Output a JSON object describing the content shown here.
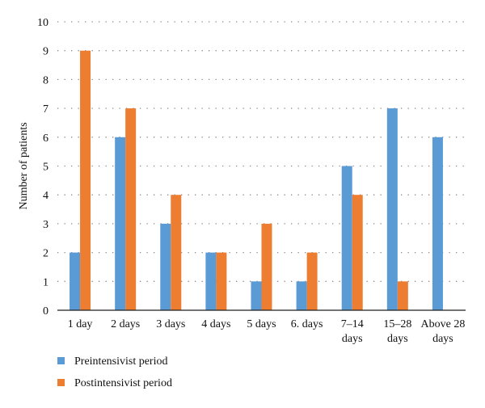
{
  "chart_data": {
    "type": "bar",
    "title": "",
    "xlabel": "",
    "ylabel": "Number of patients",
    "ylim": [
      0,
      10
    ],
    "yticks": [
      0,
      1,
      2,
      3,
      4,
      5,
      6,
      7,
      8,
      9,
      10
    ],
    "grid": "horizontal-dotted",
    "legend_position": "bottom-left",
    "categories": [
      [
        "1 day"
      ],
      [
        "2 days"
      ],
      [
        "3 days"
      ],
      [
        "4 days"
      ],
      [
        "5 days"
      ],
      [
        "6. days"
      ],
      [
        "7–14",
        "days"
      ],
      [
        "15–28",
        "days"
      ],
      [
        "Above 28",
        "days"
      ]
    ],
    "series": [
      {
        "name": "Preintensivist period",
        "color": "#5b9bd5",
        "values": [
          2,
          6,
          3,
          2,
          1,
          1,
          5,
          7,
          6
        ]
      },
      {
        "name": "Postintensivist period",
        "color": "#ed7d31",
        "values": [
          9,
          7,
          4,
          2,
          3,
          2,
          4,
          1,
          0
        ]
      }
    ]
  }
}
